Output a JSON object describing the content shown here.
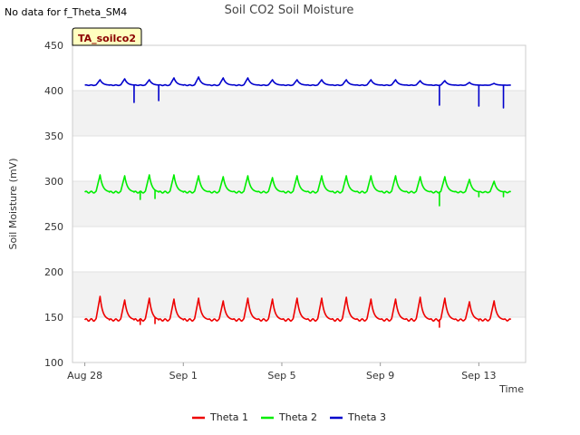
{
  "header": {
    "no_data_note": "No data for f_Theta_SM4"
  },
  "chart_data": {
    "type": "line",
    "title": "Soil CO2 Soil Moisture",
    "xlabel": "Time",
    "ylabel": "Soil Moisture (mV)",
    "tag": "TA_soilco2",
    "ylim": [
      100,
      450
    ],
    "yticks": [
      100,
      150,
      200,
      250,
      300,
      350,
      400,
      450
    ],
    "xlim": [
      -0.5,
      17.9
    ],
    "xticks": [
      {
        "label": "Aug 28",
        "day": 0
      },
      {
        "label": "Sep 1",
        "day": 4
      },
      {
        "label": "Sep 5",
        "day": 8
      },
      {
        "label": "Sep 9",
        "day": 12
      },
      {
        "label": "Sep 13",
        "day": 16
      }
    ],
    "x_start": 0,
    "x_end": 17.3,
    "bands": [
      [
        150,
        200
      ],
      [
        250,
        300
      ],
      [
        350,
        400
      ]
    ],
    "grid": true,
    "legend_placement": "bottom",
    "series": [
      {
        "name": "Theta 1",
        "color": "#ee0000",
        "base": 147,
        "peaks": [
          173,
          169,
          171,
          170,
          171,
          168,
          171,
          170,
          171,
          171,
          172,
          170,
          170,
          172,
          171,
          167,
          168,
          168
        ],
        "spikes": [
          [
            2.25,
            142
          ],
          [
            2.85,
            143
          ],
          [
            14.4,
            139
          ],
          [
            16.0,
            146
          ]
        ]
      },
      {
        "name": "Theta 2",
        "color": "#00ee00",
        "base": 288,
        "peaks": [
          307,
          306,
          307,
          307,
          306,
          305,
          306,
          304,
          306,
          306,
          306,
          306,
          306,
          305,
          305,
          302,
          300,
          302
        ],
        "spikes": [
          [
            2.25,
            280
          ],
          [
            2.85,
            281
          ],
          [
            14.4,
            273
          ],
          [
            16.0,
            283
          ],
          [
            17.0,
            283
          ]
        ]
      },
      {
        "name": "Theta 3",
        "color": "#0000cc",
        "base": 406,
        "peaks": [
          412,
          413,
          412,
          414,
          415,
          414,
          414,
          412,
          412,
          412,
          412,
          412,
          412,
          411,
          411,
          409,
          408,
          407
        ],
        "spikes": [
          [
            2.0,
            387
          ],
          [
            3.0,
            389
          ],
          [
            14.4,
            384
          ],
          [
            16.0,
            383
          ],
          [
            17.0,
            381
          ]
        ]
      }
    ]
  }
}
